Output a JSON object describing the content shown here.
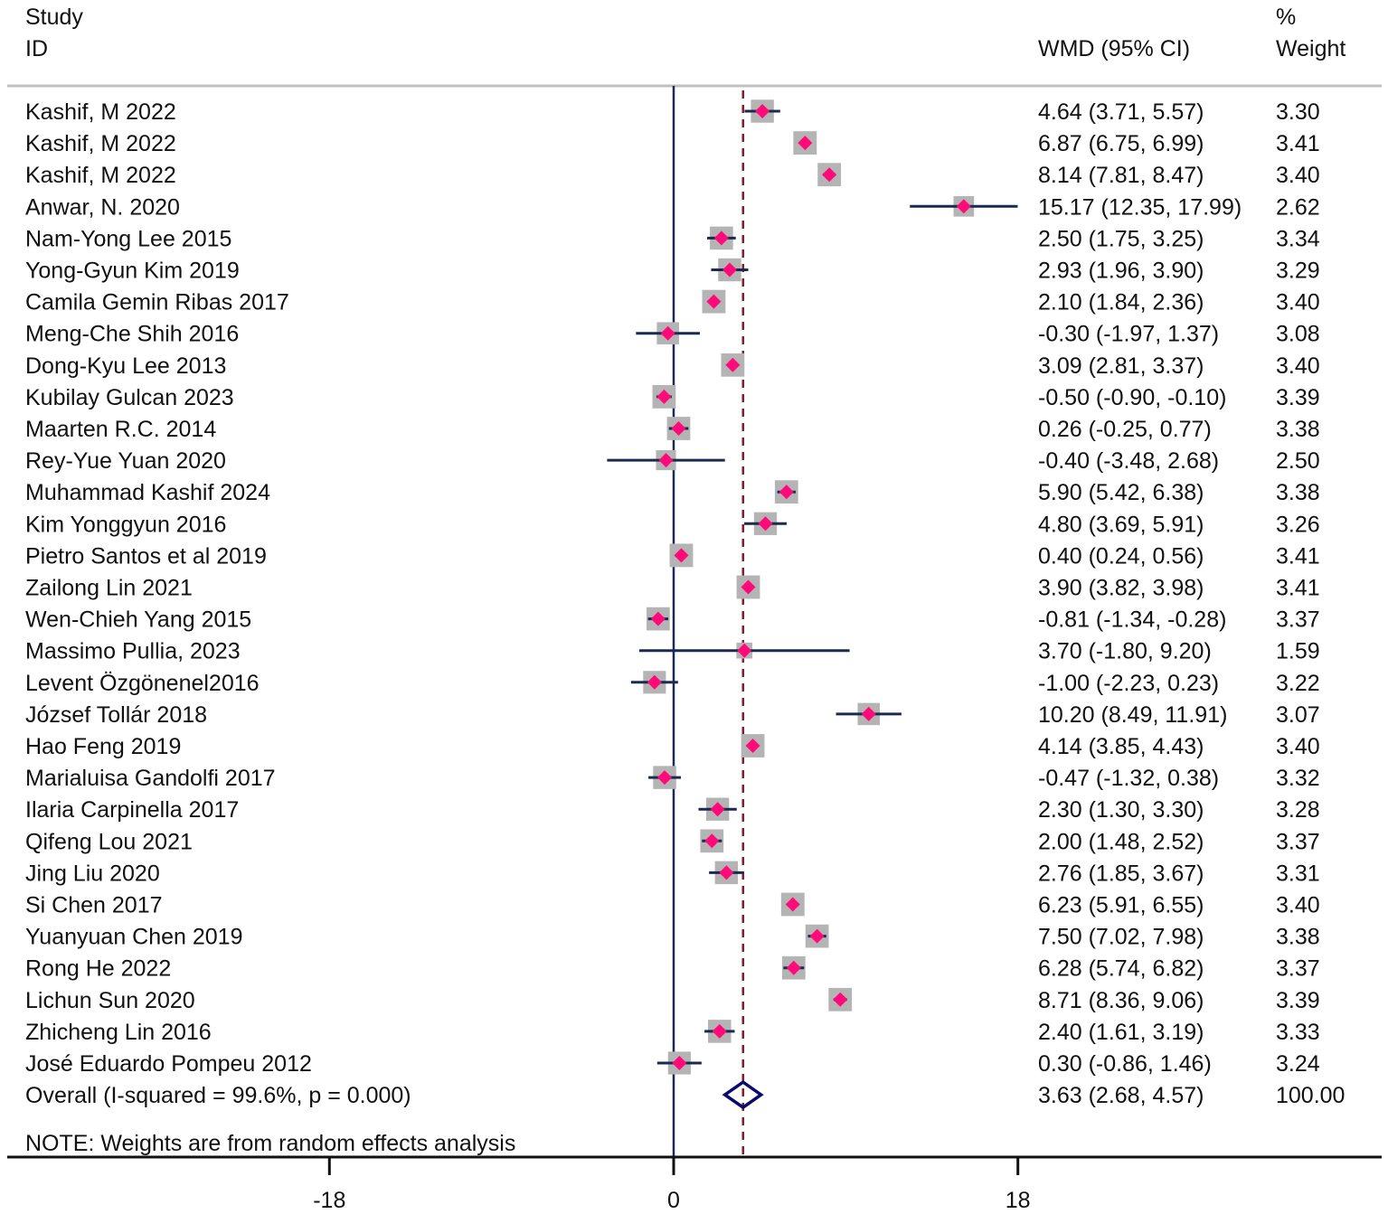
{
  "chart_data": {
    "type": "forest",
    "headers": {
      "study_line1": "Study",
      "study_line2": "ID",
      "effect": "WMD (95% CI)",
      "weight_line1": "%",
      "weight_line2": "Weight"
    },
    "xticks": [
      "-18",
      "0",
      "18"
    ],
    "xtick_values": [
      -18,
      0,
      18
    ],
    "xlim": [
      -18,
      18
    ],
    "overall_line_value": 3.63,
    "studies": [
      {
        "label": "Kashif, M 2022",
        "est": 4.64,
        "lo": 3.71,
        "hi": 5.57,
        "ci_text": "4.64 (3.71, 5.57)",
        "weight": "3.30"
      },
      {
        "label": "Kashif, M 2022",
        "est": 6.87,
        "lo": 6.75,
        "hi": 6.99,
        "ci_text": "6.87 (6.75, 6.99)",
        "weight": "3.41"
      },
      {
        "label": "Kashif, M 2022",
        "est": 8.14,
        "lo": 7.81,
        "hi": 8.47,
        "ci_text": "8.14 (7.81, 8.47)",
        "weight": "3.40"
      },
      {
        "label": "Anwar, N. 2020",
        "est": 15.17,
        "lo": 12.35,
        "hi": 17.99,
        "ci_text": "15.17 (12.35, 17.99)",
        "weight": "2.62"
      },
      {
        "label": "Nam-Yong Lee 2015",
        "est": 2.5,
        "lo": 1.75,
        "hi": 3.25,
        "ci_text": "2.50 (1.75, 3.25)",
        "weight": "3.34"
      },
      {
        "label": "Yong-Gyun Kim 2019",
        "est": 2.93,
        "lo": 1.96,
        "hi": 3.9,
        "ci_text": "2.93 (1.96, 3.90)",
        "weight": "3.29"
      },
      {
        "label": "Camila Gemin Ribas 2017",
        "est": 2.1,
        "lo": 1.84,
        "hi": 2.36,
        "ci_text": "2.10 (1.84, 2.36)",
        "weight": "3.40"
      },
      {
        "label": "Meng-Che Shih 2016",
        "est": -0.3,
        "lo": -1.97,
        "hi": 1.37,
        "ci_text": "-0.30 (-1.97, 1.37)",
        "weight": "3.08"
      },
      {
        "label": "Dong-Kyu Lee 2013",
        "est": 3.09,
        "lo": 2.81,
        "hi": 3.37,
        "ci_text": "3.09 (2.81, 3.37)",
        "weight": "3.40"
      },
      {
        "label": "Kubilay Gulcan 2023",
        "est": -0.5,
        "lo": -0.9,
        "hi": -0.1,
        "ci_text": "-0.50 (-0.90, -0.10)",
        "weight": "3.39"
      },
      {
        "label": "Maarten R.C. 2014",
        "est": 0.26,
        "lo": -0.25,
        "hi": 0.77,
        "ci_text": "0.26 (-0.25, 0.77)",
        "weight": "3.38"
      },
      {
        "label": "Rey-Yue Yuan 2020",
        "est": -0.4,
        "lo": -3.48,
        "hi": 2.68,
        "ci_text": "-0.40 (-3.48, 2.68)",
        "weight": "2.50"
      },
      {
        "label": "Muhammad Kashif 2024",
        "est": 5.9,
        "lo": 5.42,
        "hi": 6.38,
        "ci_text": "5.90 (5.42, 6.38)",
        "weight": "3.38"
      },
      {
        "label": "Kim Yonggyun 2016",
        "est": 4.8,
        "lo": 3.69,
        "hi": 5.91,
        "ci_text": "4.80 (3.69, 5.91)",
        "weight": "3.26"
      },
      {
        "label": "Pietro Santos et al 2019",
        "est": 0.4,
        "lo": 0.24,
        "hi": 0.56,
        "ci_text": "0.40 (0.24, 0.56)",
        "weight": "3.41"
      },
      {
        "label": "Zailong Lin 2021",
        "est": 3.9,
        "lo": 3.82,
        "hi": 3.98,
        "ci_text": "3.90 (3.82, 3.98)",
        "weight": "3.41"
      },
      {
        "label": "Wen-Chieh Yang 2015",
        "est": -0.81,
        "lo": -1.34,
        "hi": -0.28,
        "ci_text": "-0.81 (-1.34, -0.28)",
        "weight": "3.37"
      },
      {
        "label": "Massimo Pullia, 2023",
        "est": 3.7,
        "lo": -1.8,
        "hi": 9.2,
        "ci_text": "3.70 (-1.80, 9.20)",
        "weight": "1.59"
      },
      {
        "label": "Levent Özgönenel2016",
        "est": -1.0,
        "lo": -2.23,
        "hi": 0.23,
        "ci_text": "-1.00 (-2.23, 0.23)",
        "weight": "3.22"
      },
      {
        "label": "József Tollár 2018",
        "est": 10.2,
        "lo": 8.49,
        "hi": 11.91,
        "ci_text": "10.20 (8.49, 11.91)",
        "weight": "3.07"
      },
      {
        "label": "Hao Feng 2019",
        "est": 4.14,
        "lo": 3.85,
        "hi": 4.43,
        "ci_text": "4.14 (3.85, 4.43)",
        "weight": "3.40"
      },
      {
        "label": "Marialuisa Gandolfi  2017",
        "est": -0.47,
        "lo": -1.32,
        "hi": 0.38,
        "ci_text": "-0.47 (-1.32, 0.38)",
        "weight": "3.32"
      },
      {
        "label": "Ilaria Carpinella 2017",
        "est": 2.3,
        "lo": 1.3,
        "hi": 3.3,
        "ci_text": "2.30 (1.30, 3.30)",
        "weight": "3.28"
      },
      {
        "label": "Qifeng Lou 2021",
        "est": 2.0,
        "lo": 1.48,
        "hi": 2.52,
        "ci_text": "2.00 (1.48, 2.52)",
        "weight": "3.37"
      },
      {
        "label": "Jing Liu 2020",
        "est": 2.76,
        "lo": 1.85,
        "hi": 3.67,
        "ci_text": "2.76 (1.85, 3.67)",
        "weight": "3.31"
      },
      {
        "label": "Si Chen 2017",
        "est": 6.23,
        "lo": 5.91,
        "hi": 6.55,
        "ci_text": "6.23 (5.91, 6.55)",
        "weight": "3.40"
      },
      {
        "label": "Yuanyuan Chen 2019",
        "est": 7.5,
        "lo": 7.02,
        "hi": 7.98,
        "ci_text": "7.50 (7.02, 7.98)",
        "weight": "3.38"
      },
      {
        "label": "Rong He 2022",
        "est": 6.28,
        "lo": 5.74,
        "hi": 6.82,
        "ci_text": "6.28 (5.74, 6.82)",
        "weight": "3.37"
      },
      {
        "label": "Lichun Sun 2020",
        "est": 8.71,
        "lo": 8.36,
        "hi": 9.06,
        "ci_text": "8.71 (8.36, 9.06)",
        "weight": "3.39"
      },
      {
        "label": "Zhicheng Lin 2016",
        "est": 2.4,
        "lo": 1.61,
        "hi": 3.19,
        "ci_text": "2.40 (1.61, 3.19)",
        "weight": "3.33"
      },
      {
        "label": "José Eduardo Pompeu 2012",
        "est": 0.3,
        "lo": -0.86,
        "hi": 1.46,
        "ci_text": "0.30 (-0.86, 1.46)",
        "weight": "3.24"
      }
    ],
    "overall": {
      "label": "Overall  (I-squared = 99.6%, p = 0.000)",
      "est": 3.63,
      "lo": 2.68,
      "hi": 4.57,
      "ci_text": "3.63 (2.68, 4.57)",
      "weight": "100.00"
    },
    "note": "NOTE: Weights are from random effects analysis",
    "colors": {
      "point": "#ff0a78",
      "box": "#b4b4b4",
      "ci": "#1a2a52",
      "null_line": "#1a2a52",
      "overall_line": "#8b1a2a",
      "diamond": "#0a0a6e",
      "separator": "#c0c0c0"
    }
  }
}
